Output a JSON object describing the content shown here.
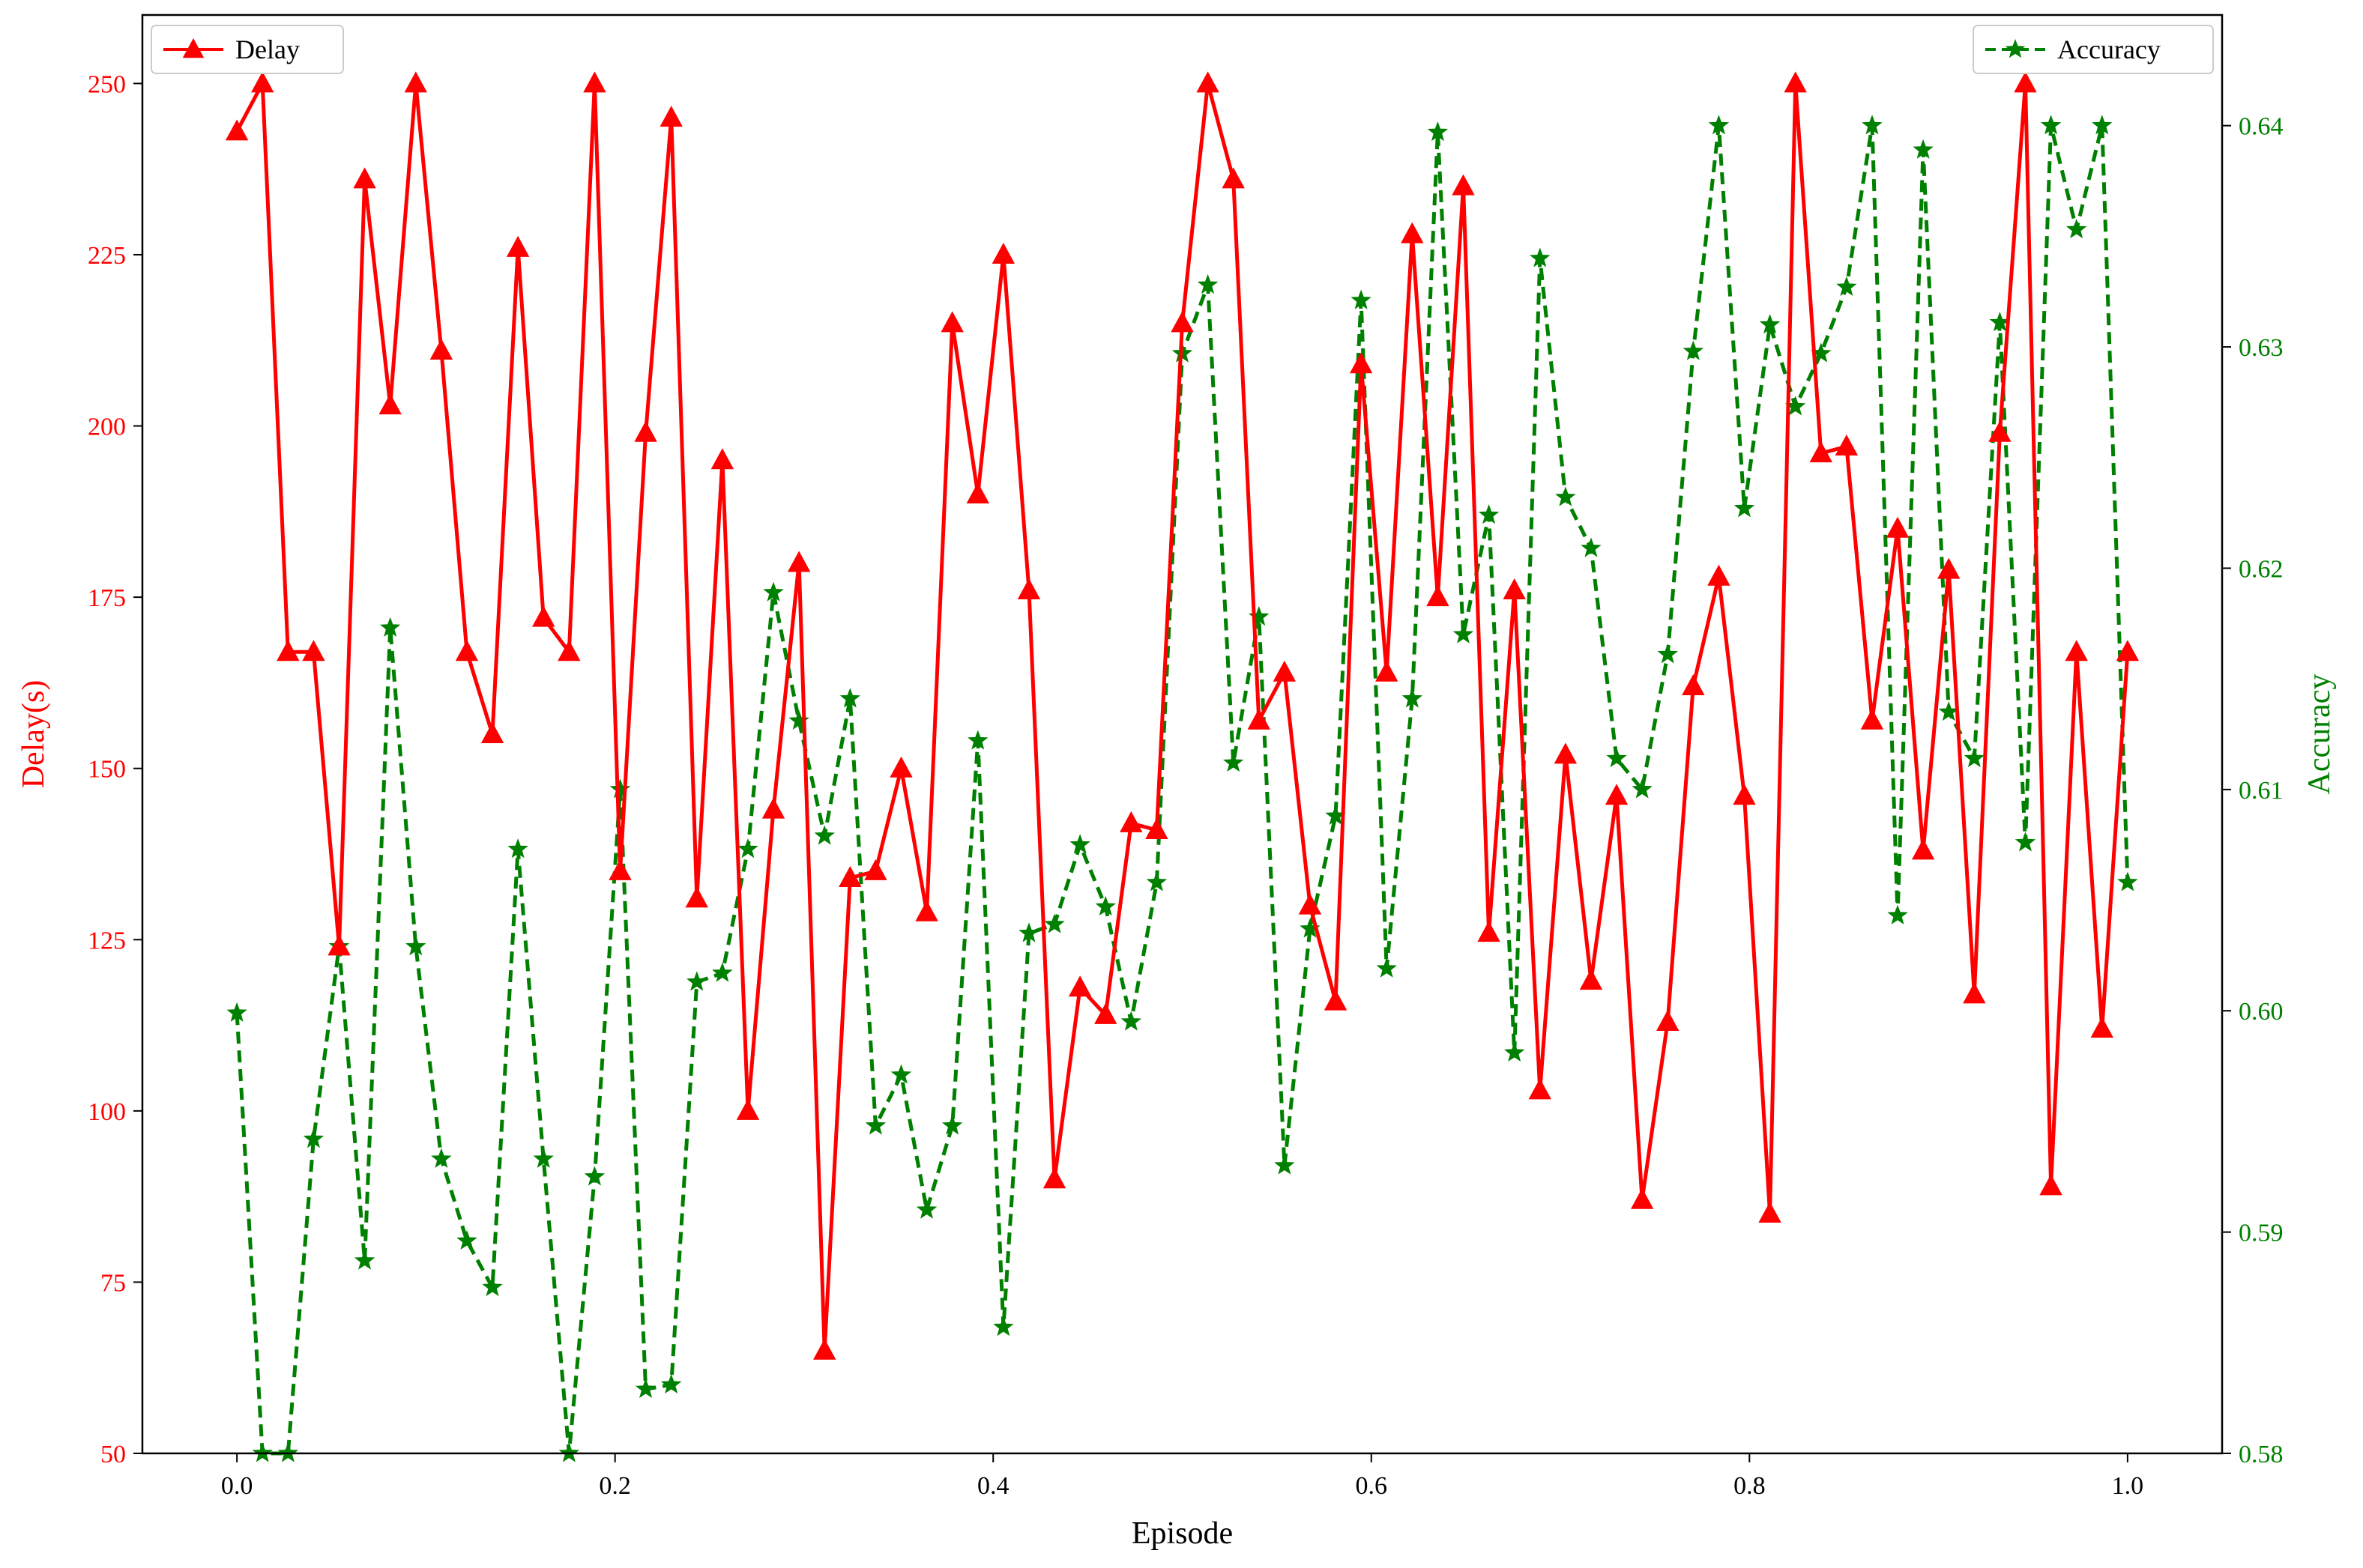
{
  "chart_data": {
    "type": "line",
    "xlabel": "Episode",
    "ylabel_left": "Delay(s)",
    "ylabel_right": "Accuracy",
    "xlim": [
      -0.05,
      1.05
    ],
    "ylim_left": [
      50,
      260
    ],
    "ylim_right": [
      0.58,
      0.645
    ],
    "xticks": [
      0.0,
      0.2,
      0.4,
      0.6,
      0.8,
      1.0
    ],
    "xtick_labels": [
      "0.0",
      "0.2",
      "0.4",
      "0.6",
      "0.8",
      "1.0"
    ],
    "yticks_left": [
      50,
      75,
      100,
      125,
      150,
      175,
      200,
      225,
      250
    ],
    "ytick_labels_left": [
      "50",
      "75",
      "100",
      "125",
      "150",
      "175",
      "200",
      "225",
      "250"
    ],
    "yticks_right": [
      0.58,
      0.59,
      0.6,
      0.61,
      0.62,
      0.63,
      0.64
    ],
    "ytick_labels_right": [
      "0.58",
      "0.59",
      "0.60",
      "0.61",
      "0.62",
      "0.63",
      "0.64"
    ],
    "grid": false,
    "colors": {
      "delay": "#ff0000",
      "accuracy": "#008000",
      "axis": "#000000"
    },
    "series": [
      {
        "name": "Delay",
        "axis": "left",
        "style": "solid",
        "marker": "triangle",
        "legend_position": "top-left",
        "y": [
          243,
          250,
          167,
          167,
          124,
          236,
          203,
          250,
          211,
          167,
          155,
          226,
          172,
          167,
          250,
          135,
          199,
          245,
          131,
          195,
          100,
          144,
          180,
          65,
          134,
          135,
          150,
          129,
          215,
          190,
          225,
          176,
          90,
          118,
          114,
          142,
          141,
          215,
          250,
          236,
          157,
          164,
          130,
          116,
          209,
          164,
          228,
          175,
          235,
          126,
          176,
          103,
          152,
          119,
          146,
          87,
          113,
          162,
          178,
          146,
          85,
          250,
          196,
          197,
          157,
          185,
          138,
          179,
          117,
          199,
          250,
          89,
          167,
          112,
          167
        ]
      },
      {
        "name": "Accuracy",
        "axis": "right",
        "style": "dashed",
        "marker": "star",
        "legend_position": "top-right",
        "y": [
          0.5999,
          0.58,
          0.58,
          0.5942,
          0.6029,
          0.5887,
          0.6173,
          0.6029,
          0.5933,
          0.5896,
          0.5875,
          0.6073,
          0.5933,
          0.58,
          0.5925,
          0.61,
          0.5829,
          0.5831,
          0.6013,
          0.6017,
          0.6073,
          0.6189,
          0.6131,
          0.6079,
          0.6141,
          0.5948,
          0.5971,
          0.591,
          0.5948,
          0.6122,
          0.5857,
          0.6035,
          0.6039,
          0.6075,
          0.6047,
          0.5995,
          0.6058,
          0.6297,
          0.6328,
          0.6112,
          0.6178,
          0.593,
          0.6037,
          0.6088,
          0.6321,
          0.6019,
          0.6141,
          0.6397,
          0.617,
          0.6224,
          0.5981,
          0.634,
          0.6232,
          0.6209,
          0.6114,
          0.61,
          0.6161,
          0.6298,
          0.64,
          0.6227,
          0.631,
          0.6273,
          0.6297,
          0.6327,
          0.64,
          0.6043,
          0.6389,
          0.6135,
          0.6114,
          0.6311,
          0.6076,
          0.64,
          0.6353,
          0.64,
          0.6058
        ]
      }
    ]
  }
}
